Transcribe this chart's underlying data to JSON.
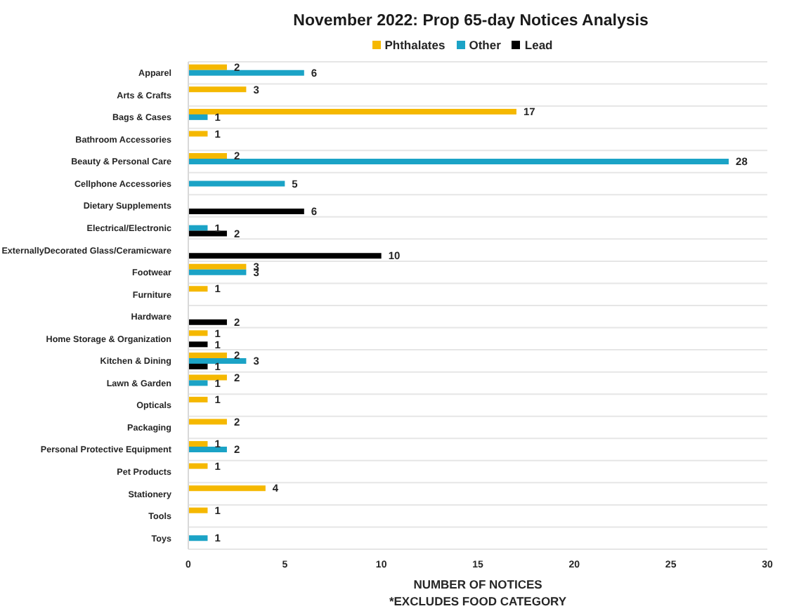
{
  "chart_data": {
    "type": "bar",
    "title": "November 2022: Prop 65-day Notices Analysis",
    "orientation": "horizontal",
    "categories": [
      "Apparel",
      "Arts & Crafts",
      "Bags & Cases",
      "Bathroom Accessories",
      "Beauty & Personal Care",
      "Cellphone Accessories",
      "Dietary Supplements",
      "Electrical/Electronic",
      "ExternallyDecorated Glass/Ceramicware",
      "Footwear",
      "Furniture",
      "Hardware",
      "Home Storage & Organization",
      "Kitchen & Dining",
      "Lawn & Garden",
      "Opticals",
      "Packaging",
      "Personal Protective Equipment",
      "Pet Products",
      "Stationery",
      "Tools",
      "Toys"
    ],
    "series": [
      {
        "name": "Phthalates",
        "color": "#f5b800",
        "values": [
          2,
          3,
          17,
          1,
          2,
          null,
          null,
          null,
          null,
          3,
          1,
          null,
          1,
          2,
          2,
          1,
          2,
          1,
          1,
          4,
          1,
          null
        ]
      },
      {
        "name": "Other",
        "color": "#1ba3c6",
        "values": [
          6,
          null,
          1,
          null,
          28,
          5,
          null,
          1,
          null,
          3,
          null,
          null,
          null,
          3,
          1,
          null,
          null,
          2,
          null,
          null,
          null,
          1
        ]
      },
      {
        "name": "Lead",
        "color": "#000000",
        "values": [
          null,
          null,
          null,
          null,
          null,
          null,
          6,
          2,
          10,
          null,
          null,
          2,
          1,
          1,
          null,
          null,
          null,
          null,
          null,
          null,
          null,
          null
        ]
      }
    ],
    "xlabel": "NUMBER OF NOTICES",
    "annotations": [
      "*EXCLUDES FOOD CATEGORY"
    ],
    "xlim": [
      0,
      30
    ],
    "xticks": [
      0,
      5,
      10,
      15,
      20,
      25,
      30
    ],
    "grid": "y",
    "legend": "top",
    "data_labels": true
  }
}
